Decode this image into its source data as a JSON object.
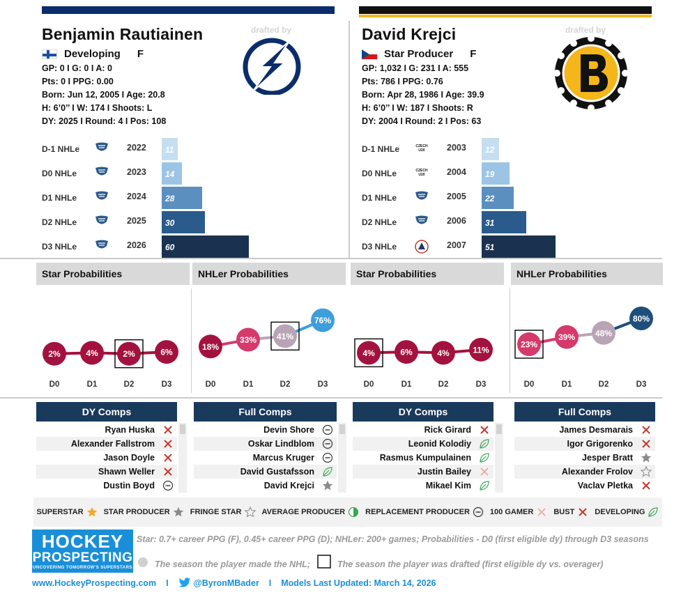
{
  "drafted_by_label": "drafted by",
  "players": [
    {
      "name": "Benjamin Rautiainen",
      "flag": "finland-flag",
      "tier": "Developing",
      "position": "F",
      "stats": [
        "GP: 0 I G: 0 I A: 0",
        "Pts: 0 I PPG: 0.00",
        "Born: Jun 12, 2005 I Age: 20.8",
        "H: 6’0’’ I W: 174 I Shoots: L",
        "DY: 2025 I Round: 4 I Pos: 108"
      ],
      "team_logo": "tampa-bay-lightning-logo",
      "team_color": "#0b2d6b",
      "seasons": [
        {
          "label": "D-1 NHLe",
          "year": "2022",
          "value": 11,
          "color": "#c5dff0",
          "icon": "league-icon"
        },
        {
          "label": "D0 NHLe",
          "year": "2023",
          "value": 14,
          "color": "#9cc4e4",
          "icon": "league-icon"
        },
        {
          "label": "D1 NHLe",
          "year": "2024",
          "value": 28,
          "color": "#5a8fc0",
          "icon": "league-icon"
        },
        {
          "label": "D2 NHLe",
          "year": "2025",
          "value": 30,
          "color": "#2b5b8c",
          "icon": "league-icon"
        },
        {
          "label": "D3 NHLe",
          "year": "2026",
          "value": 60,
          "color": "#1a3250",
          "icon": "league-icon"
        }
      ],
      "star_probs": {
        "title": "Star Probabilities",
        "points": [
          {
            "x": "D0",
            "value": "2%",
            "color": "#a3123f",
            "drafted": false,
            "made_nhl": false
          },
          {
            "x": "D1",
            "value": "4%",
            "color": "#a3123f",
            "drafted": false,
            "made_nhl": false
          },
          {
            "x": "D2",
            "value": "2%",
            "color": "#a3123f",
            "drafted": true,
            "made_nhl": false
          },
          {
            "x": "D3",
            "value": "6%",
            "color": "#a3123f",
            "drafted": false,
            "made_nhl": false
          }
        ]
      },
      "nhl_probs": {
        "title": "NHLer Probabilities",
        "points": [
          {
            "x": "D0",
            "value": "18%",
            "color": "#a3123f",
            "drafted": false
          },
          {
            "x": "D1",
            "value": "33%",
            "color": "#d6396c",
            "drafted": false
          },
          {
            "x": "D2",
            "value": "41%",
            "color": "#b9a4b6",
            "drafted": true
          },
          {
            "x": "D3",
            "value": "76%",
            "color": "#3d9edb",
            "drafted": false
          }
        ]
      },
      "dy_comps": {
        "title": "DY Comps",
        "items": [
          {
            "name": "Ryan Huska",
            "icon": "bust"
          },
          {
            "name": "Alexander Fallstrom",
            "icon": "bust"
          },
          {
            "name": "Jason Doyle",
            "icon": "bust"
          },
          {
            "name": "Shawn Weller",
            "icon": "bust"
          },
          {
            "name": "Dustin Boyd",
            "icon": "replacement"
          }
        ]
      },
      "full_comps": {
        "title": "Full Comps",
        "items": [
          {
            "name": "Devin Shore",
            "icon": "replacement"
          },
          {
            "name": "Oskar Lindblom",
            "icon": "replacement"
          },
          {
            "name": "Marcus Kruger",
            "icon": "replacement"
          },
          {
            "name": "David Gustafsson",
            "icon": "developing"
          },
          {
            "name": "David Krejci",
            "icon": "star-producer"
          }
        ]
      }
    },
    {
      "name": "David Krejci",
      "flag": "czech-flag",
      "tier": "Star Producer",
      "position": "F",
      "stats": [
        "GP: 1,032 I G: 231 I A: 555",
        "Pts: 786 I PPG: 0.76",
        "Born: Apr 28, 1986 I Age: 39.9",
        "H: 6’0’’ I W: 187 I Shoots: R",
        "DY: 2004 I Round: 2 I Pos: 63"
      ],
      "team_logo": "boston-bruins-logo",
      "team_color": "#f5b61b",
      "seasons": [
        {
          "label": "D-1 NHLe",
          "year": "2003",
          "value": 12,
          "color": "#c5dff0",
          "icon": "czech-u20-icon",
          "icon_text": "CZECH U20"
        },
        {
          "label": "D0 NHLe",
          "year": "2004",
          "value": 19,
          "color": "#9cc4e4",
          "icon": "czech-u20-icon",
          "icon_text": "CZECH U20"
        },
        {
          "label": "D1 NHLe",
          "year": "2005",
          "value": 22,
          "color": "#5a8fc0",
          "icon": "league-icon"
        },
        {
          "label": "D2 NHLe",
          "year": "2006",
          "value": 31,
          "color": "#2b5b8c",
          "icon": "league-icon"
        },
        {
          "label": "D3 NHLe",
          "year": "2007",
          "value": 51,
          "color": "#1a3250",
          "icon": "ahl-icon"
        }
      ],
      "star_probs": {
        "title": "Star Probabilities",
        "points": [
          {
            "x": "D0",
            "value": "4%",
            "color": "#a3123f",
            "drafted": true
          },
          {
            "x": "D1",
            "value": "6%",
            "color": "#a3123f",
            "drafted": false
          },
          {
            "x": "D2",
            "value": "4%",
            "color": "#a3123f",
            "drafted": false
          },
          {
            "x": "D3",
            "value": "11%",
            "color": "#a3123f",
            "drafted": false
          }
        ]
      },
      "nhl_probs": {
        "title": "NHLer Probabilities",
        "points": [
          {
            "x": "D0",
            "value": "23%",
            "color": "#d6396c",
            "drafted": true
          },
          {
            "x": "D1",
            "value": "39%",
            "color": "#d6396c",
            "drafted": false
          },
          {
            "x": "D2",
            "value": "48%",
            "color": "#b9a4b6",
            "drafted": false
          },
          {
            "x": "D3",
            "value": "80%",
            "color": "#1f4e7a",
            "drafted": false
          }
        ]
      },
      "dy_comps": {
        "title": "DY Comps",
        "items": [
          {
            "name": "Rick Girard",
            "icon": "bust"
          },
          {
            "name": "Leonid Kolodiy",
            "icon": "developing"
          },
          {
            "name": "Rasmus Kumpulainen",
            "icon": "developing"
          },
          {
            "name": "Justin Bailey",
            "icon": "gamer-100"
          },
          {
            "name": "Mikael Kim",
            "icon": "developing"
          }
        ]
      },
      "full_comps": {
        "title": "Full Comps",
        "items": [
          {
            "name": "James Desmarais",
            "icon": "bust"
          },
          {
            "name": "Igor Grigorenko",
            "icon": "bust"
          },
          {
            "name": "Jesper Bratt",
            "icon": "star-producer"
          },
          {
            "name": "Alexander Frolov",
            "icon": "fringe-star"
          },
          {
            "name": "Vaclav Pletka",
            "icon": "bust"
          }
        ]
      }
    }
  ],
  "legend": [
    {
      "label": "SUPERSTAR",
      "icon": "superstar"
    },
    {
      "label": "STAR PRODUCER",
      "icon": "star-producer"
    },
    {
      "label": "FRINGE STAR",
      "icon": "fringe-star"
    },
    {
      "label": "AVERAGE PRODUCER",
      "icon": "average"
    },
    {
      "label": "REPLACEMENT PRODUCER",
      "icon": "replacement"
    },
    {
      "label": "100 GAMER",
      "icon": "gamer-100"
    },
    {
      "label": "BUST",
      "icon": "bust"
    },
    {
      "label": "DEVELOPING",
      "icon": "developing"
    }
  ],
  "logo": {
    "line1": "HOCKEY",
    "line2": "PROSPECTING",
    "line3": "UNCOVERING TOMORROW'S SUPERSTARS"
  },
  "notes": {
    "definition": "Star: 0.7+ career PPG (F), 0.45+ career PPG (D); NHLer: 200+ games; Probabilities - D0 (first eligible dy) through D3 seasons",
    "made_nhl": "The season the player made the NHL;",
    "drafted": "The season the player was drafted (first eligible dy vs. overager)"
  },
  "footer": {
    "website": "www.HockeyProspecting.com",
    "separator": "I",
    "twitter": "@ByronMBader",
    "updated": "Models Last Updated: March 14, 2026"
  }
}
